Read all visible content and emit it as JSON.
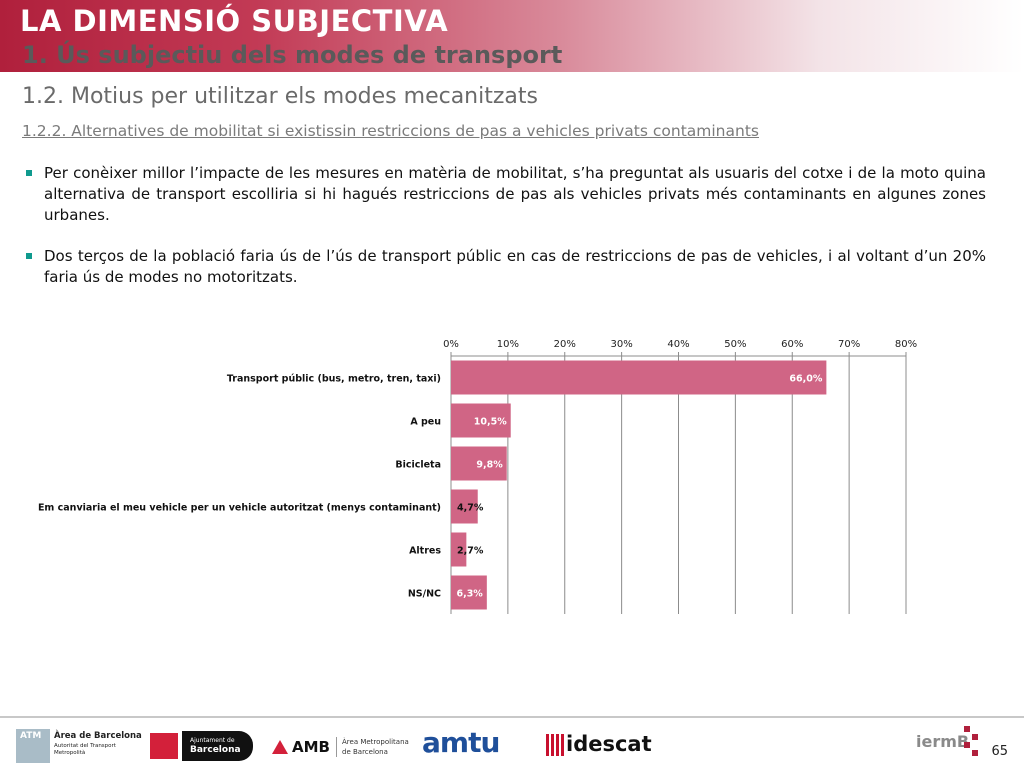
{
  "header": {
    "title": "LA DIMENSIÓ SUBJECTIVA",
    "subtitle": "1. Ús subjectiu dels modes de transport"
  },
  "section": {
    "title": "1.2. Motius per utilitzar els modes mecanitzats",
    "subtitle": "1.2.2. Alternatives de mobilitat si existissin restriccions de pas a vehicles privats contaminants"
  },
  "bullets": [
    "Per conèixer millor l’impacte de les mesures en matèria de mobilitat, s’ha preguntat als usuaris del cotxe i de la moto quina alternativa de transport escolliria si hi hagués restriccions de pas als vehicles privats més contaminants en algunes zones urbanes.",
    "Dos terços de la població faria ús de l’ús de transport públic en cas de restriccions de pas de vehicles, i al voltant d’un 20% faria ús de modes no motoritzats."
  ],
  "colors": {
    "bar": "#d06585",
    "accent": "#b0203c",
    "bullet": "#0f9a8e"
  },
  "chart_data": {
    "type": "bar",
    "orientation": "horizontal",
    "categories": [
      "Transport públic (bus, metro, tren, taxi)",
      "A peu",
      "Bicicleta",
      "Em canviaria el meu vehicle per un vehicle autoritzat (menys contaminant)",
      "Altres",
      "NS/NC"
    ],
    "values": [
      66.0,
      10.5,
      9.8,
      4.7,
      2.7,
      6.3
    ],
    "data_labels": [
      "66,0%",
      "10,5%",
      "9,8%",
      "4,7%",
      "2,7%",
      "6,3%"
    ],
    "xlim": [
      0,
      80
    ],
    "ticks": [
      0,
      10,
      20,
      30,
      40,
      50,
      60,
      70,
      80
    ],
    "tick_labels": [
      "0%",
      "10%",
      "20%",
      "30%",
      "40%",
      "50%",
      "60%",
      "70%",
      "80%"
    ],
    "axis_position": "top",
    "grid": true,
    "legend": false
  },
  "footer": {
    "logos": [
      "ATM",
      "Àrea de Barcelona",
      "Autoritat del Transport Metropolità",
      "Ajuntament de",
      "Barcelona",
      "AMB",
      "Àrea Metropolitana",
      "de Barcelona",
      "amtu",
      "idescat",
      "iermB"
    ],
    "page_number": "65"
  }
}
